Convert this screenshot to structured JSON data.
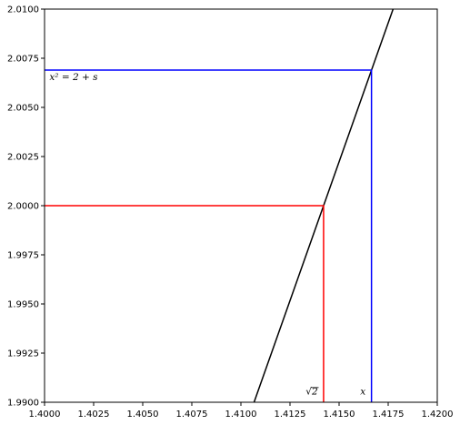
{
  "chart_data": {
    "type": "line",
    "xlim": [
      1.4,
      1.42
    ],
    "ylim": [
      1.99,
      2.01
    ],
    "x_ticks": [
      "1.4000",
      "1.4025",
      "1.4050",
      "1.4075",
      "1.4100",
      "1.4125",
      "1.4150",
      "1.4175",
      "1.4200"
    ],
    "y_ticks": [
      "1.9900",
      "1.9925",
      "1.9950",
      "1.9975",
      "2.0000",
      "2.0025",
      "2.0050",
      "2.0075",
      "2.0100"
    ],
    "grid": false,
    "series": [
      {
        "kind": "curve y = x^2",
        "color": "#000000",
        "points": [
          {
            "x": 1.41067,
            "y": 1.99
          },
          {
            "x": 1.41775,
            "y": 2.01
          }
        ]
      },
      {
        "kind": "guide",
        "color": "#ff0000",
        "points": [
          {
            "x": 1.4,
            "y": 2.0
          },
          {
            "x": 1.41421,
            "y": 2.0
          },
          {
            "x": 1.41421,
            "y": 1.99
          }
        ]
      },
      {
        "kind": "guide",
        "color": "#0000ff",
        "points": [
          {
            "x": 1.4,
            "y": 2.0069
          },
          {
            "x": 1.41665,
            "y": 2.0069
          },
          {
            "x": 1.41665,
            "y": 1.99
          }
        ]
      }
    ],
    "annotations": [
      {
        "id": "sqrt2",
        "text": "√2",
        "x": 1.41392,
        "y": 1.9904,
        "anchor": "end"
      },
      {
        "id": "x",
        "text": "x",
        "x": 1.41635,
        "y": 1.9904,
        "anchor": "end"
      },
      {
        "id": "eq",
        "text": "x² = 2 + s",
        "x": 1.40025,
        "y": 2.0064,
        "anchor": "start"
      }
    ]
  }
}
